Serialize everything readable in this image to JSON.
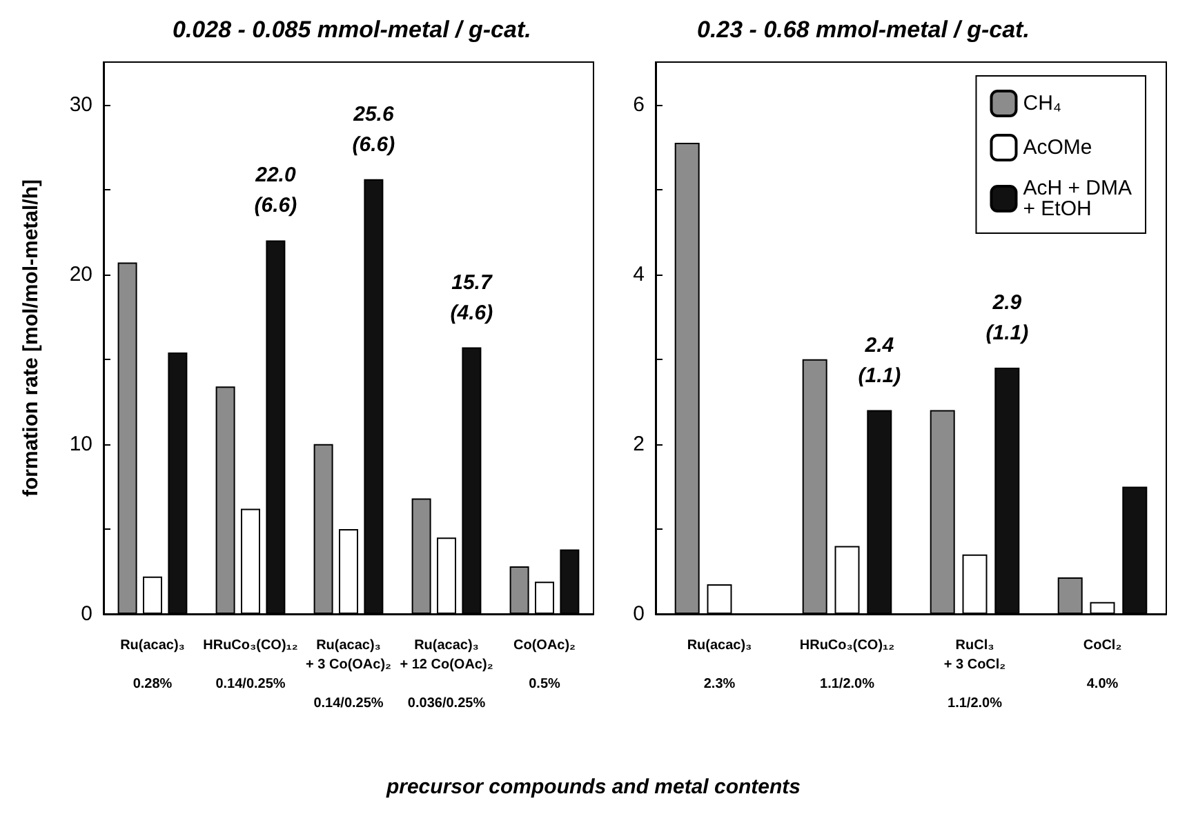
{
  "chart_data": [
    {
      "type": "bar",
      "title": "0.028 - 0.085 mmol-metal / g-cat.",
      "ylabel": "formation rate [mol/mol-metal/h]",
      "xlabel": "precursor compounds and metal contents",
      "categories": [
        "Ru(acac)₃\n\n0.28%",
        "HRuCo₃(CO)₁₂\n\n0.14/0.25%",
        "Ru(acac)₃\n+ 3 Co(OAc)₂\n\n0.14/0.25%",
        "Ru(acac)₃\n+ 12 Co(OAc)₂\n\n0.036/0.25%",
        "Co(OAc)₂\n\n0.5%"
      ],
      "series": [
        {
          "color": "#8c8c8c",
          "values": [
            20.7,
            13.4,
            10.0,
            6.8,
            2.8
          ]
        },
        {
          "color": "#ffffff",
          "values": [
            2.2,
            6.2,
            5.0,
            4.5,
            1.9
          ]
        },
        {
          "color": "#111111",
          "values": [
            15.4,
            22.0,
            25.6,
            15.7,
            3.8
          ],
          "value_labels": [
            null,
            "22.0\n(6.6)",
            "25.6\n(6.6)",
            "15.7\n(4.6)",
            null
          ]
        }
      ],
      "ylim": [
        0,
        32.5
      ],
      "yticks": [
        0,
        {
          "value": 5,
          "label": null
        },
        10,
        {
          "value": 15,
          "label": null
        },
        20,
        {
          "value": 25,
          "label": null
        },
        30
      ],
      "legend": false
    },
    {
      "type": "bar",
      "title": "0.23 - 0.68 mmol-metal / g-cat.",
      "categories": [
        "Ru(acac)₃\n\n2.3%",
        "HRuCo₃(CO)₁₂\n\n1.1/2.0%",
        "RuCl₃\n+ 3 CoCl₂\n\n1.1/2.0%",
        "CoCl₂\n\n4.0%"
      ],
      "series": [
        {
          "name": "CH₄",
          "color": "#8c8c8c",
          "values": [
            5.55,
            3.0,
            2.4,
            0.43
          ]
        },
        {
          "name": "AcOMe",
          "color": "#ffffff",
          "values": [
            0.35,
            0.8,
            0.7,
            0.14
          ]
        },
        {
          "name": "AcH + DMA\n+ EtOH",
          "color": "#111111",
          "values": [
            null,
            2.4,
            2.9,
            1.5
          ],
          "value_labels": [
            null,
            "2.4\n(1.1)",
            "2.9\n(1.1)",
            null
          ]
        }
      ],
      "ylim": [
        0,
        6.5
      ],
      "yticks": [
        0,
        {
          "value": 1,
          "label": null
        },
        2,
        {
          "value": 3,
          "label": null
        },
        4,
        {
          "value": 5,
          "label": null
        },
        6
      ],
      "legend": "top right"
    }
  ]
}
